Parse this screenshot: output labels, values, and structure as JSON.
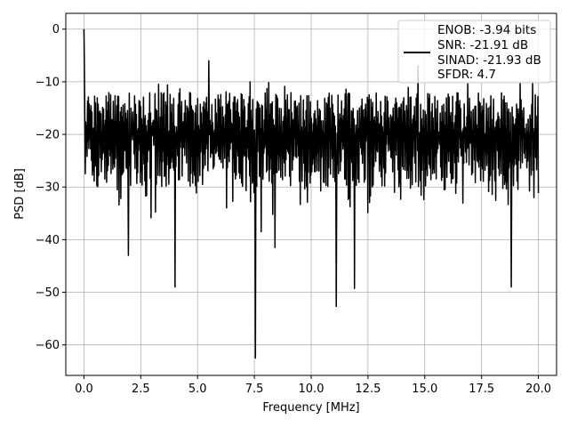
{
  "chart_data": {
    "type": "line",
    "xlabel": "Frequency [MHz]",
    "ylabel": "PSD [dB]",
    "xlim": [
      -0.8,
      20.8
    ],
    "ylim": [
      -65.8,
      3.0
    ],
    "x_ticks": [
      0.0,
      2.5,
      5.0,
      7.5,
      10.0,
      12.5,
      15.0,
      17.5,
      20.0
    ],
    "x_tick_labels": [
      "0.0",
      "2.5",
      "5.0",
      "7.5",
      "10.0",
      "12.5",
      "15.0",
      "17.5",
      "20.0"
    ],
    "y_ticks": [
      0,
      -10,
      -20,
      -30,
      -40,
      -50,
      -60
    ],
    "y_tick_labels": [
      "0",
      "−10",
      "−20",
      "−30",
      "−40",
      "−50",
      "−60"
    ],
    "grid": true,
    "legend_position": "top-right",
    "series": [
      {
        "legend_lines": [
          "ENOB: -3.94 bits",
          "SNR: -21.91 dB",
          "SINAD: -21.93 dB",
          "SFDR: 4.7"
        ],
        "color": "#000000",
        "x_range": [
          0.0,
          20.0
        ],
        "n_points": 1024,
        "noise_band": {
          "typical_high": -10,
          "typical_low": -30
        },
        "peak_points": [
          {
            "x": 0.0,
            "y": 0.0
          },
          {
            "x": 0.02,
            "y": -7.5
          },
          {
            "x": 0.06,
            "y": -27.5
          },
          {
            "x": 4.0,
            "y": -49.0
          },
          {
            "x": 5.5,
            "y": -6.0
          },
          {
            "x": 7.55,
            "y": -62.5
          },
          {
            "x": 7.8,
            "y": -38.5
          },
          {
            "x": 11.1,
            "y": -52.7
          },
          {
            "x": 11.9,
            "y": -49.3
          },
          {
            "x": 14.7,
            "y": -7.0
          },
          {
            "x": 18.8,
            "y": -49.0
          },
          {
            "x": 1.95,
            "y": -43.0
          },
          {
            "x": 8.4,
            "y": -41.5
          }
        ]
      }
    ]
  }
}
